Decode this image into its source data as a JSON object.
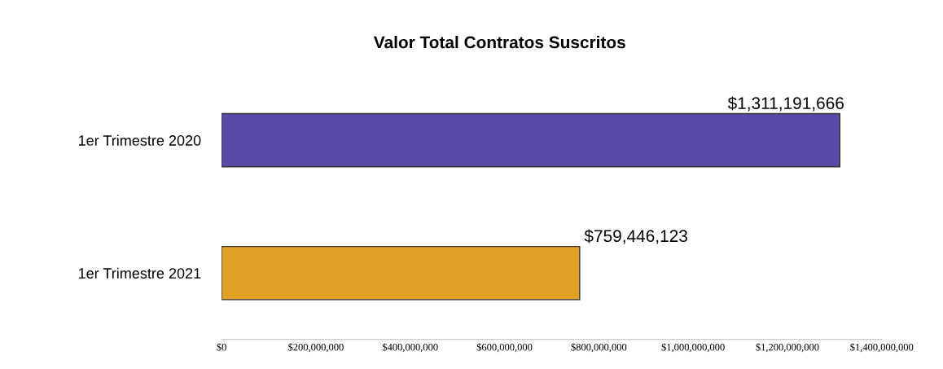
{
  "chart_data": {
    "type": "bar",
    "orientation": "horizontal",
    "title": "Valor Total Contratos Suscritos",
    "categories": [
      "1er Trimestre 2020",
      "1er Trimestre 2021"
    ],
    "values": [
      1311191666,
      759446123
    ],
    "colors": [
      "#5a4aa8",
      "#e0a024"
    ],
    "value_labels": [
      "$1,311,191,666",
      "$759,446,123"
    ],
    "xlim": [
      0,
      1400000000
    ],
    "xticks": [
      {
        "value": 0,
        "label": "$0"
      },
      {
        "value": 200000000,
        "label": "$200,000,000"
      },
      {
        "value": 400000000,
        "label": "$400,000,000"
      },
      {
        "value": 600000000,
        "label": "$600,000,000"
      },
      {
        "value": 800000000,
        "label": "$800,000,000"
      },
      {
        "value": 1000000000,
        "label": "$1,000,000,000"
      },
      {
        "value": 1200000000,
        "label": "$1,200,000,000"
      },
      {
        "value": 1400000000,
        "label": "$1,400,000,000"
      }
    ],
    "grid": false,
    "legend": false
  }
}
